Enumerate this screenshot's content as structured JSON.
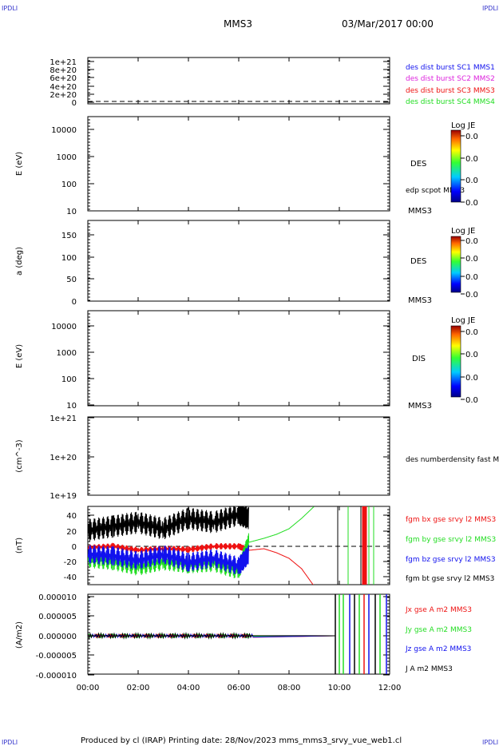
{
  "header": {
    "corner_tl": "IPDLI",
    "corner_tr": "IPDLI",
    "corner_bl": "IPDLI",
    "corner_br": "IPDLI",
    "mission": "MMS3",
    "datetime": "03/Mar/2017 00:00"
  },
  "footer": {
    "text": "Produced by cl (IRAP)   Printing date: 28/Nov/2023   mms_mms3_srvy_vue_web1.cl"
  },
  "colors": {
    "red": "#ee1111",
    "green": "#22dd22",
    "blue": "#1111ee",
    "black": "#000000",
    "magenta": "#dd22dd",
    "corner": "#3333cc"
  },
  "chart_data": [
    {
      "type": "line",
      "panel": "burst",
      "yticks": [
        "1e+21",
        "8e+20",
        "6e+20",
        "4e+20",
        "2e+20",
        "0"
      ],
      "ylim": [
        0,
        1e+21
      ],
      "dashed_zero": true,
      "legend": [
        {
          "label": "des dist burst SC1 MMS1",
          "color": "blue"
        },
        {
          "label": "des dist burst SC2 MMS2",
          "color": "magenta"
        },
        {
          "label": "des dist burst SC3 MMS3",
          "color": "red"
        },
        {
          "label": "des dist burst SC4 MMS4",
          "color": "green"
        }
      ]
    },
    {
      "type": "heatmap",
      "panel": "des_energy",
      "ylabel": "E (eV)",
      "scale": "log",
      "yticks": [
        "10000",
        "1000",
        "100",
        "10"
      ],
      "side_labels": [
        "DES",
        "edp scpot MMS3",
        "MMS3"
      ],
      "colorbar": {
        "title": "Log JE",
        "ticks": [
          "0.0",
          "0.0",
          "0.0",
          "0.0"
        ]
      }
    },
    {
      "type": "heatmap",
      "panel": "des_pitch",
      "ylabel": "a (deg)",
      "yticks": [
        "150",
        "100",
        "50",
        "0"
      ],
      "ylim": [
        0,
        180
      ],
      "side_labels": [
        "DES",
        "MMS3"
      ],
      "colorbar": {
        "title": "Log JE",
        "ticks": [
          "0.0",
          "0.0",
          "0.0",
          "0.0"
        ]
      }
    },
    {
      "type": "heatmap",
      "panel": "dis_energy",
      "ylabel": "E (eV)",
      "scale": "log",
      "yticks": [
        "10000",
        "1000",
        "100",
        "10"
      ],
      "side_labels": [
        "DIS",
        "MMS3"
      ],
      "colorbar": {
        "title": "Log JE",
        "ticks": [
          "0.0",
          "0.0",
          "0.0",
          "0.0"
        ]
      }
    },
    {
      "type": "line",
      "panel": "density",
      "ylabel": "(cm^-3)",
      "scale": "log",
      "yticks": [
        "1e+21",
        "1e+20",
        "1e+19"
      ],
      "legend": [
        {
          "label": "des numberdensity fast M",
          "color": "black"
        }
      ]
    },
    {
      "type": "line",
      "panel": "fgm",
      "ylabel": "(nT)",
      "yticks": [
        "40",
        "20",
        "0",
        "-20",
        "-40"
      ],
      "ylim": [
        -50,
        50
      ],
      "dashed_zero": true,
      "legend": [
        {
          "label": "fgm bx gse srvy l2 MMS3",
          "color": "red"
        },
        {
          "label": "fgm by gse srvy l2 MMS3",
          "color": "green"
        },
        {
          "label": "fgm bz gse srvy l2 MMS3",
          "color": "blue"
        },
        {
          "label": "fgm bt gse srvy l2 MMS3",
          "color": "black"
        }
      ],
      "series": [
        {
          "name": "fgm bx gse srvy l2 MMS3",
          "color": "red",
          "x": [
            0,
            1,
            2,
            3,
            4,
            5,
            6,
            6.4,
            7,
            7.5,
            8,
            8.5,
            9
          ],
          "values": [
            -2,
            0,
            -5,
            -3,
            -4,
            0,
            0,
            -5,
            -3,
            -8,
            -15,
            -28,
            -50
          ]
        },
        {
          "name": "fgm by gse srvy l2 MMS3",
          "color": "green",
          "x": [
            0,
            1,
            2,
            3,
            4,
            5,
            6,
            6.4,
            7,
            7.5,
            8,
            8.5,
            9
          ],
          "values": [
            -15,
            -18,
            -25,
            -18,
            -22,
            -20,
            -30,
            5,
            10,
            15,
            22,
            35,
            50
          ]
        },
        {
          "name": "fgm bz gse srvy l2 MMS3",
          "color": "blue",
          "x": [
            0,
            1,
            2,
            3,
            4,
            5,
            6,
            6.4
          ],
          "values": [
            -10,
            -12,
            -18,
            -10,
            -20,
            -15,
            -25,
            -10
          ]
        },
        {
          "name": "fgm bt gse srvy l2 MMS3",
          "color": "black",
          "x": [
            0,
            1,
            2,
            3,
            4,
            5,
            6,
            6.4
          ],
          "values": [
            20,
            25,
            30,
            22,
            35,
            30,
            40,
            35
          ]
        }
      ]
    },
    {
      "type": "line",
      "panel": "current",
      "ylabel": "(A/m2)",
      "yticks": [
        "0.000010",
        "0.000005",
        "0.000000",
        "-0.000005",
        "-0.000010"
      ],
      "ylim": [
        -1e-05,
        1e-05
      ],
      "legend": [
        {
          "label": "Jx gse A m2 MMS3",
          "color": "red"
        },
        {
          "label": "Jy gse A m2 MMS3",
          "color": "green"
        },
        {
          "label": "Jz gse A m2 MMS3",
          "color": "blue"
        },
        {
          "label": "J A m2 MMS3",
          "color": "black"
        }
      ],
      "xticks": [
        "00:00",
        "02:00",
        "04:00",
        "06:00",
        "08:00",
        "10:00",
        "12:00"
      ],
      "xlim": [
        0,
        12
      ]
    }
  ]
}
